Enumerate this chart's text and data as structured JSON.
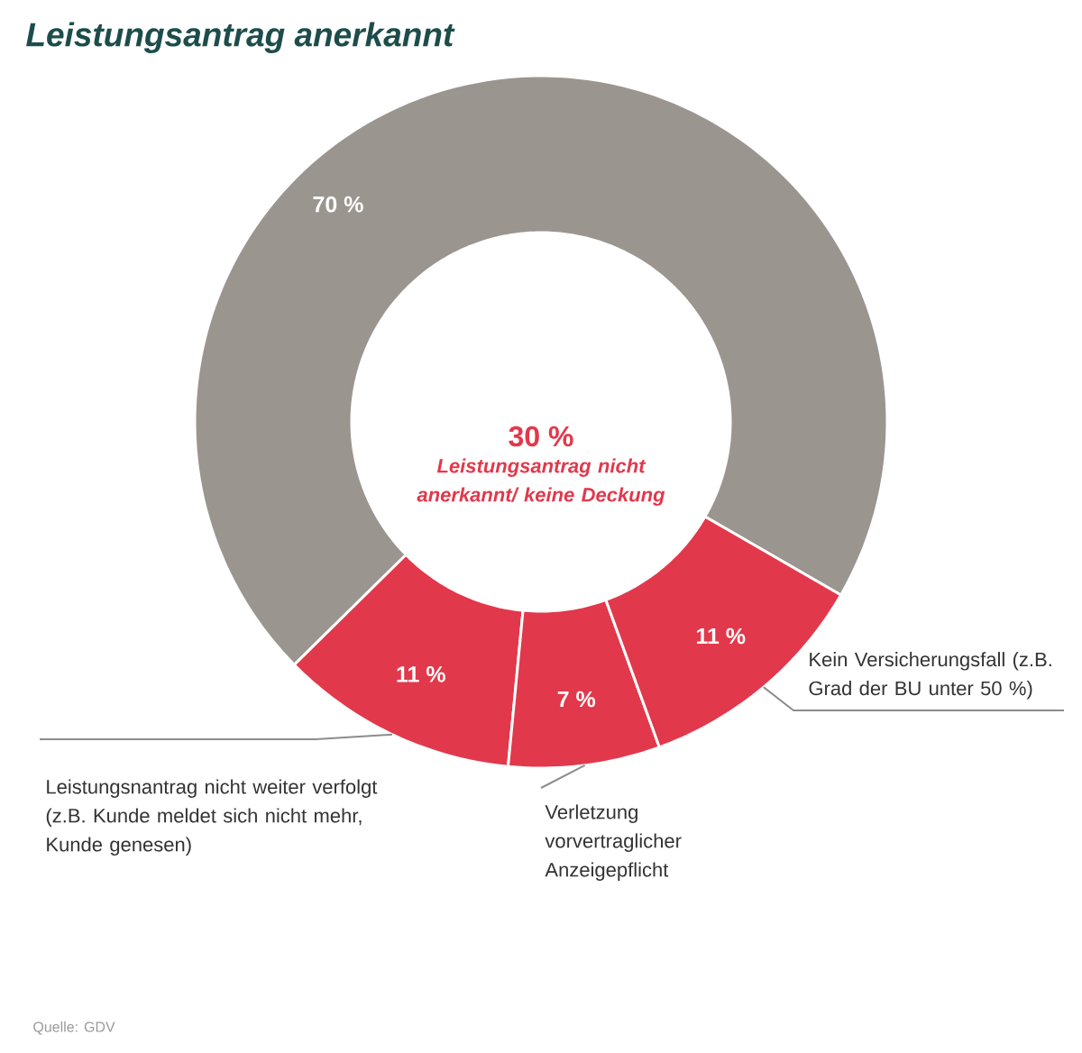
{
  "chart_data": {
    "type": "donut",
    "title": "Leistungsantrag anerkannt",
    "categories": [
      null,
      "Leistungsnantrag nicht weiter verfolgt (z.B. Kunde meldet sich nicht mehr, Kunde genesen)",
      "Verletzung vorvertraglicher Anzeigepflicht",
      "Kein Versicherungsfall (z.B. Grad der BU unter 50 %)"
    ],
    "values": [
      70,
      11,
      7,
      11
    ],
    "value_labels": [
      "70 %",
      "11 %",
      "7 %",
      "11 %"
    ],
    "colors": [
      "#9b9590",
      "#e2384b",
      "#e2384b",
      "#e2384b"
    ],
    "annotations": [
      "30 %",
      "Leistungsantrag nicht anerkannt/ keine Deckung",
      "Quelle: GDV"
    ]
  }
}
